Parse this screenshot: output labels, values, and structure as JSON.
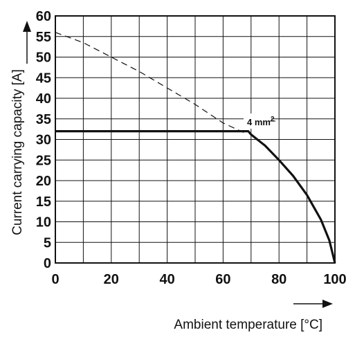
{
  "chart_data": {
    "type": "line",
    "xlabel": "Ambient temperature [°C]",
    "ylabel": "Current carrying capacity [A]",
    "xlim": [
      0,
      100
    ],
    "ylim": [
      0,
      60
    ],
    "x_ticks": [
      0,
      20,
      40,
      60,
      80,
      100
    ],
    "y_ticks": [
      0,
      5,
      10,
      15,
      20,
      25,
      30,
      35,
      40,
      45,
      50,
      55,
      60
    ],
    "grid": true,
    "annotation": {
      "base": "4 mm",
      "sup": "2",
      "anchor_x": 71,
      "anchor_y": 33.5
    },
    "series": [
      {
        "style": "dashed",
        "x": [
          0,
          10,
          20,
          30,
          40,
          50,
          60,
          68
        ],
        "y": [
          56,
          53.5,
          50,
          46.5,
          42.5,
          38.5,
          34,
          31.5
        ]
      },
      {
        "style": "solid-thick",
        "x": [
          0,
          69,
          70,
          75,
          80,
          85,
          90,
          95,
          98,
          100
        ],
        "y": [
          32,
          32,
          31.2,
          28.5,
          25,
          21.2,
          16.5,
          10.5,
          5.5,
          0
        ]
      }
    ]
  }
}
